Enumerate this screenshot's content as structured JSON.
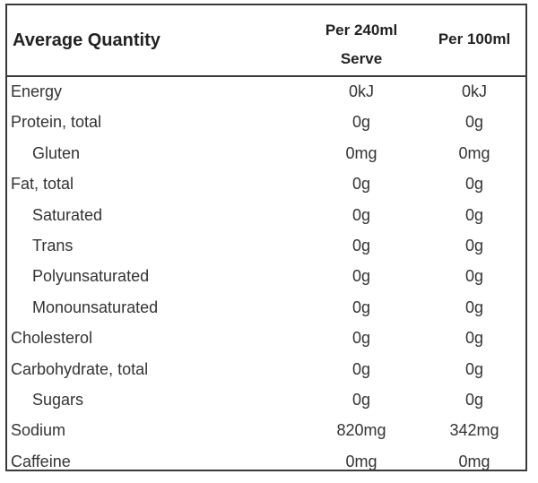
{
  "header": {
    "title": "Average Quantity",
    "col1_line1": "Per 240ml",
    "col1_line2": "Serve",
    "col2": "Per 100ml"
  },
  "rows": [
    {
      "name": "Energy",
      "per_serve": "0kJ",
      "per_100ml": "0kJ"
    },
    {
      "name": "Protein, total",
      "per_serve": "0g",
      "per_100ml": "0g"
    },
    {
      "name": "Gluten",
      "per_serve": "0mg",
      "per_100ml": "0mg"
    },
    {
      "name": "Fat, total",
      "per_serve": "0g",
      "per_100ml": "0g"
    },
    {
      "name": "Saturated",
      "per_serve": "0g",
      "per_100ml": "0g"
    },
    {
      "name": "Trans",
      "per_serve": "0g",
      "per_100ml": "0g"
    },
    {
      "name": "Polyunsaturated",
      "per_serve": "0g",
      "per_100ml": "0g"
    },
    {
      "name": "Monounsaturated",
      "per_serve": "0g",
      "per_100ml": "0g"
    },
    {
      "name": "Cholesterol",
      "per_serve": "0g",
      "per_100ml": "0g"
    },
    {
      "name": "Carbohydrate, total",
      "per_serve": "0g",
      "per_100ml": "0g"
    },
    {
      "name": "Sugars",
      "per_serve": "0g",
      "per_100ml": "0g"
    },
    {
      "name": "Sodium",
      "per_serve": "820mg",
      "per_100ml": "342mg"
    },
    {
      "name": "Caffeine",
      "per_serve": "0mg",
      "per_100ml": "0mg"
    }
  ]
}
